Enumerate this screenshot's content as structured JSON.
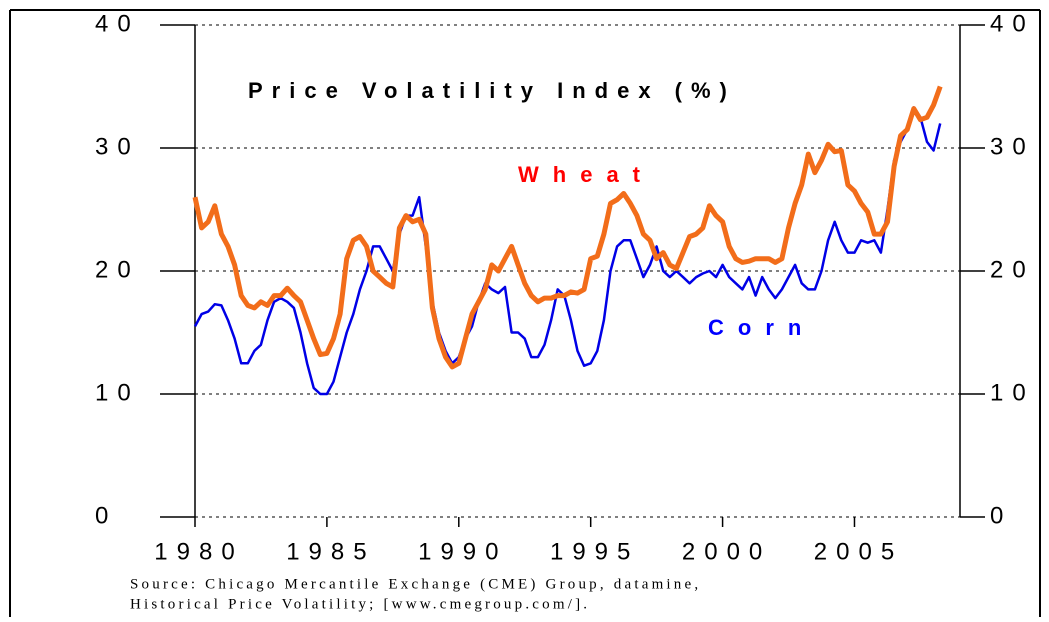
{
  "chart_data": {
    "type": "line",
    "title": "Price Volatility Index (%)",
    "annotations": [
      {
        "text": "Wheat",
        "color": "#ff0000"
      },
      {
        "text": "Corn",
        "color": "#0000ff"
      }
    ],
    "source": [
      "Source: Chicago Mercantile Exchange (CME) Group, datamine,",
      "Historical Price Volatility; [www.cmegroup.com/]."
    ],
    "x": [
      1980,
      1980.25,
      1980.5,
      1980.75,
      1981,
      1981.25,
      1981.5,
      1981.75,
      1982,
      1982.25,
      1982.5,
      1982.75,
      1983,
      1983.25,
      1983.5,
      1983.75,
      1984,
      1984.25,
      1984.5,
      1984.75,
      1985,
      1985.25,
      1985.5,
      1985.75,
      1986,
      1986.25,
      1986.5,
      1986.75,
      1987,
      1987.25,
      1987.5,
      1987.75,
      1988,
      1988.25,
      1988.5,
      1988.75,
      1989,
      1989.25,
      1989.5,
      1989.75,
      1990,
      1990.25,
      1990.5,
      1990.75,
      1991,
      1991.25,
      1991.5,
      1991.75,
      1992,
      1992.25,
      1992.5,
      1992.75,
      1993,
      1993.25,
      1993.5,
      1993.75,
      1994,
      1994.25,
      1994.5,
      1994.75,
      1995,
      1995.25,
      1995.5,
      1995.75,
      1996,
      1996.25,
      1996.5,
      1996.75,
      1997,
      1997.25,
      1997.5,
      1997.75,
      1998,
      1998.25,
      1998.5,
      1998.75,
      1999,
      1999.25,
      1999.5,
      1999.75,
      2000,
      2000.25,
      2000.5,
      2000.75,
      2001,
      2001.25,
      2001.5,
      2001.75,
      2002,
      2002.25,
      2002.5,
      2002.75,
      2003,
      2003.25,
      2003.5,
      2003.75,
      2004,
      2004.25,
      2004.5,
      2004.75,
      2005,
      2005.25,
      2005.5,
      2005.75,
      2006,
      2006.25,
      2006.5,
      2006.75,
      2007,
      2007.25,
      2007.5,
      2007.75,
      2008,
      2008.25
    ],
    "series": [
      {
        "name": "Wheat",
        "color": "#f26d1a",
        "width": 5,
        "values": [
          26,
          23.5,
          24,
          25.3,
          23,
          22,
          20.5,
          18,
          17.2,
          17,
          17.5,
          17.2,
          18,
          18,
          18.6,
          18,
          17.5,
          16,
          14.5,
          13.2,
          13.3,
          14.5,
          16.5,
          21,
          22.5,
          22.8,
          22,
          20,
          19.5,
          19,
          18.7,
          23.5,
          24.5,
          24,
          24.2,
          23,
          17,
          14.5,
          13,
          12.2,
          12.5,
          14.5,
          16.5,
          17.5,
          18.5,
          20.5,
          20,
          21,
          22,
          20.5,
          19,
          18,
          17.5,
          17.8,
          17.8,
          18,
          18,
          18.3,
          18.2,
          18.5,
          21,
          21.2,
          23,
          25.5,
          25.8,
          26.3,
          25.5,
          24.5,
          23,
          22.5,
          21,
          21.5,
          20.5,
          20.2,
          21.5,
          22.8,
          23,
          23.5,
          25.3,
          24.5,
          24,
          22,
          21,
          20.7,
          20.8,
          21,
          21,
          21,
          20.7,
          21,
          23.5,
          25.5,
          27,
          29.5,
          28,
          29,
          30.3,
          29.7,
          29.8,
          27,
          26.5,
          25.5,
          24.8,
          23,
          23,
          24,
          28.5,
          31,
          31.5,
          33.2,
          32.3,
          32.5,
          33.5,
          35
        ]
      },
      {
        "name": "Corn",
        "color": "#0000e6",
        "width": 2.5,
        "values": [
          15.5,
          16.5,
          16.7,
          17.3,
          17.2,
          16,
          14.5,
          12.5,
          12.5,
          13.5,
          14,
          16,
          17.5,
          17.8,
          17.5,
          17,
          15,
          12.5,
          10.5,
          10,
          10,
          11,
          13,
          15,
          16.5,
          18.5,
          20,
          22,
          22,
          21,
          20,
          23,
          24.5,
          24.5,
          26,
          22,
          17.5,
          15,
          13.5,
          12.5,
          13,
          14.5,
          15.5,
          17.5,
          19,
          18.5,
          18.2,
          18.7,
          15,
          15,
          14.5,
          13,
          13,
          14,
          16,
          18.5,
          18,
          16,
          13.5,
          12.3,
          12.5,
          13.5,
          16,
          20,
          22,
          22.5,
          22.5,
          21,
          19.5,
          20.5,
          22,
          20,
          19.5,
          20,
          19.5,
          19,
          19.5,
          19.8,
          20,
          19.5,
          20.5,
          19.5,
          19,
          18.5,
          19.5,
          18,
          19.5,
          18.5,
          17.8,
          18.5,
          19.5,
          20.5,
          19,
          18.5,
          18.5,
          20,
          22.5,
          24,
          22.5,
          21.5,
          21.5,
          22.5,
          22.3,
          22.5,
          21.5,
          25,
          29,
          30.5,
          31.5,
          33.3,
          32.5,
          30.5,
          29.8,
          32
        ]
      }
    ],
    "xlim": [
      1980,
      2009
    ],
    "xticks": [
      1980,
      1985,
      1990,
      1995,
      2000,
      2005
    ],
    "ylim": [
      0,
      40
    ],
    "yticks": [
      0,
      10,
      20,
      30,
      40
    ],
    "y2lim": [
      0,
      40
    ],
    "y2ticks": [
      0,
      10,
      20,
      30,
      40
    ],
    "grid": true
  }
}
